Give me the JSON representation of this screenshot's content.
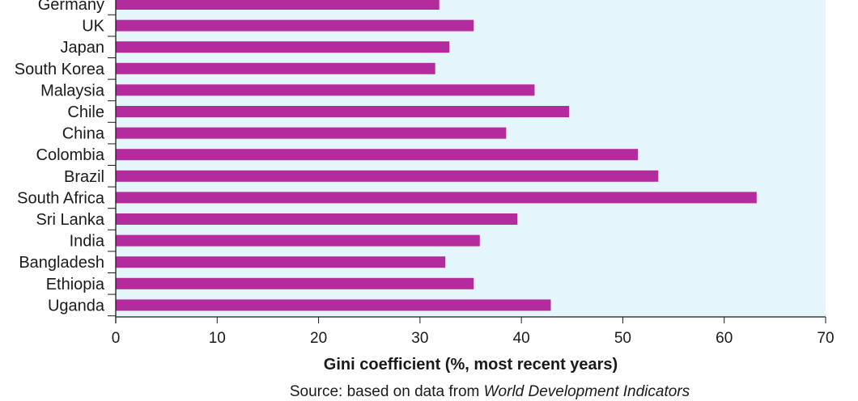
{
  "colors": {
    "bar": "#b42b9e",
    "plot_bg": "#e4f5fc",
    "axis": "#1a1a1a"
  },
  "chart_data": {
    "type": "bar",
    "orientation": "horizontal",
    "categories": [
      "Germany",
      "UK",
      "Japan",
      "South Korea",
      "Malaysia",
      "Chile",
      "China",
      "Colombia",
      "Brazil",
      "South Africa",
      "Sri Lanka",
      "India",
      "Bangladesh",
      "Ethiopia",
      "Uganda"
    ],
    "values": [
      31.9,
      35.3,
      32.9,
      31.5,
      41.3,
      44.7,
      38.5,
      51.5,
      53.5,
      63.2,
      39.6,
      35.9,
      32.5,
      35.3,
      42.9
    ],
    "xlabel": "Gini coefficient (%, most recent years)",
    "xlim": [
      0,
      70
    ],
    "xticks": [
      "0",
      "10",
      "20",
      "30",
      "40",
      "50",
      "60",
      "70"
    ],
    "grid": false
  },
  "source": {
    "prefix": "Source: based on data from ",
    "title": "World Development Indicators"
  }
}
